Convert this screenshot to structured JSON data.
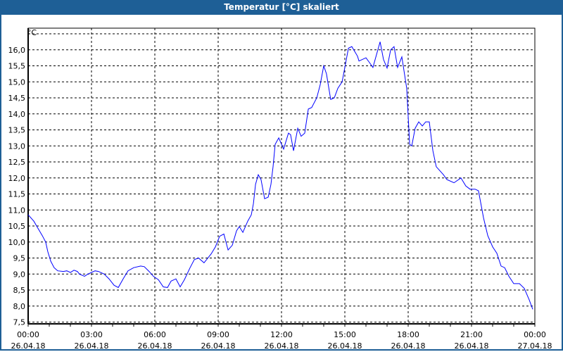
{
  "window": {
    "title": "Temperatur [°C] skaliert"
  },
  "chart_data": {
    "type": "line",
    "title": "Temperatur [°C] skaliert",
    "ylabel": "°C",
    "xlabel": "",
    "ylim": [
      7.5,
      16.5
    ],
    "xlim_hours": [
      0,
      24
    ],
    "grid": true,
    "line_color": "#0000ff",
    "y_ticks": [
      "7,5",
      "8,0",
      "8,5",
      "9,0",
      "9,5",
      "10,0",
      "10,5",
      "11,0",
      "11,5",
      "12,0",
      "12,5",
      "13,0",
      "13,5",
      "14,0",
      "14,5",
      "15,0",
      "15,5",
      "16,0"
    ],
    "y_tick_values": [
      7.5,
      8,
      8.5,
      9,
      9.5,
      10,
      10.5,
      11,
      11.5,
      12,
      12.5,
      13,
      13.5,
      14,
      14.5,
      15,
      15.5,
      16
    ],
    "x_ticks": [
      {
        "hour": 0,
        "time": "00:00",
        "date": "26.04.18"
      },
      {
        "hour": 3,
        "time": "03:00",
        "date": "26.04.18"
      },
      {
        "hour": 6,
        "time": "06:00",
        "date": "26.04.18"
      },
      {
        "hour": 9,
        "time": "09:00",
        "date": "26.04.18"
      },
      {
        "hour": 12,
        "time": "12:00",
        "date": "26.04.18"
      },
      {
        "hour": 15,
        "time": "15:00",
        "date": "26.04.18"
      },
      {
        "hour": 18,
        "time": "18:00",
        "date": "26.04.18"
      },
      {
        "hour": 21,
        "time": "21:00",
        "date": "26.04.18"
      },
      {
        "hour": 24,
        "time": "00:00",
        "date": "27.04.18"
      }
    ],
    "series": [
      {
        "name": "Temperatur",
        "points": [
          [
            0,
            10.85
          ],
          [
            0.27,
            10.65
          ],
          [
            0.4,
            10.5
          ],
          [
            0.67,
            10.2
          ],
          [
            0.83,
            10.0
          ],
          [
            0.93,
            9.7
          ],
          [
            1.07,
            9.4
          ],
          [
            1.23,
            9.2
          ],
          [
            1.4,
            9.1
          ],
          [
            1.67,
            9.08
          ],
          [
            1.83,
            9.1
          ],
          [
            2,
            9.05
          ],
          [
            2.17,
            9.12
          ],
          [
            2.33,
            9.08
          ],
          [
            2.43,
            9.0
          ],
          [
            2.67,
            8.93
          ],
          [
            2.83,
            9.0
          ],
          [
            3,
            9.05
          ],
          [
            3.17,
            9.1
          ],
          [
            3.33,
            9.08
          ],
          [
            3.6,
            9.0
          ],
          [
            3.83,
            8.85
          ],
          [
            4.07,
            8.65
          ],
          [
            4.27,
            8.58
          ],
          [
            4.5,
            8.85
          ],
          [
            4.73,
            9.1
          ],
          [
            5,
            9.2
          ],
          [
            5.33,
            9.25
          ],
          [
            5.5,
            9.23
          ],
          [
            5.73,
            9.08
          ],
          [
            5.93,
            8.93
          ],
          [
            6.17,
            8.82
          ],
          [
            6.4,
            8.6
          ],
          [
            6.6,
            8.58
          ],
          [
            6.77,
            8.78
          ],
          [
            7,
            8.85
          ],
          [
            7.2,
            8.6
          ],
          [
            7.4,
            8.82
          ],
          [
            7.67,
            9.2
          ],
          [
            7.87,
            9.45
          ],
          [
            8.07,
            9.5
          ],
          [
            8.33,
            9.35
          ],
          [
            8.67,
            9.63
          ],
          [
            8.87,
            9.85
          ],
          [
            9.07,
            10.18
          ],
          [
            9.27,
            10.25
          ],
          [
            9.47,
            9.75
          ],
          [
            9.67,
            9.9
          ],
          [
            9.87,
            10.35
          ],
          [
            10,
            10.48
          ],
          [
            10.17,
            10.3
          ],
          [
            10.4,
            10.65
          ],
          [
            10.57,
            10.85
          ],
          [
            10.67,
            11.2
          ],
          [
            10.77,
            11.8
          ],
          [
            10.9,
            12.1
          ],
          [
            11.03,
            11.95
          ],
          [
            11.2,
            11.35
          ],
          [
            11.37,
            11.4
          ],
          [
            11.5,
            11.8
          ],
          [
            11.6,
            12.35
          ],
          [
            11.7,
            13.05
          ],
          [
            11.87,
            13.25
          ],
          [
            12.1,
            12.9
          ],
          [
            12.33,
            13.4
          ],
          [
            12.43,
            13.35
          ],
          [
            12.57,
            12.85
          ],
          [
            12.77,
            13.55
          ],
          [
            12.93,
            13.3
          ],
          [
            13.1,
            13.4
          ],
          [
            13.27,
            14.15
          ],
          [
            13.43,
            14.2
          ],
          [
            13.67,
            14.5
          ],
          [
            13.83,
            14.9
          ],
          [
            14,
            15.5
          ],
          [
            14.13,
            15.25
          ],
          [
            14.33,
            14.45
          ],
          [
            14.5,
            14.5
          ],
          [
            14.67,
            14.8
          ],
          [
            14.87,
            15.0
          ],
          [
            15,
            15.45
          ],
          [
            15.17,
            16.05
          ],
          [
            15.33,
            16.1
          ],
          [
            15.6,
            15.8
          ],
          [
            15.67,
            15.65
          ],
          [
            16,
            15.75
          ],
          [
            16.17,
            15.6
          ],
          [
            16.33,
            15.45
          ],
          [
            16.67,
            16.25
          ],
          [
            16.83,
            15.7
          ],
          [
            17,
            15.43
          ],
          [
            17.17,
            16.0
          ],
          [
            17.33,
            16.1
          ],
          [
            17.5,
            15.45
          ],
          [
            17.7,
            15.78
          ],
          [
            17.93,
            14.8
          ],
          [
            18.07,
            13.05
          ],
          [
            18.17,
            13.0
          ],
          [
            18.33,
            13.55
          ],
          [
            18.5,
            13.75
          ],
          [
            18.67,
            13.62
          ],
          [
            18.83,
            13.75
          ],
          [
            19,
            13.75
          ],
          [
            19.17,
            12.85
          ],
          [
            19.33,
            12.35
          ],
          [
            19.67,
            12.1
          ],
          [
            19.83,
            11.95
          ],
          [
            20.17,
            11.85
          ],
          [
            20.5,
            12.0
          ],
          [
            20.73,
            11.75
          ],
          [
            20.93,
            11.65
          ],
          [
            21.17,
            11.65
          ],
          [
            21.33,
            11.6
          ],
          [
            21.57,
            10.75
          ],
          [
            21.77,
            10.2
          ],
          [
            22,
            9.85
          ],
          [
            22.2,
            9.65
          ],
          [
            22.4,
            9.25
          ],
          [
            22.57,
            9.2
          ],
          [
            22.77,
            8.93
          ],
          [
            23,
            8.7
          ],
          [
            23.27,
            8.7
          ],
          [
            23.5,
            8.55
          ],
          [
            23.73,
            8.2
          ],
          [
            23.9,
            7.9
          ]
        ]
      }
    ]
  }
}
